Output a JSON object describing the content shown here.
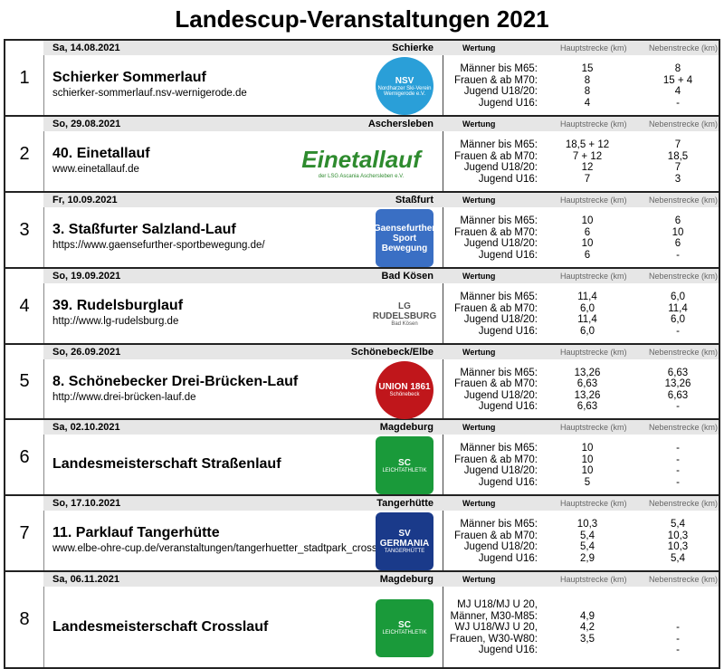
{
  "title": "Landescup-Veranstaltungen 2021",
  "headers": {
    "wertung": "Wertung",
    "haupt": "Hauptstrecke (km)",
    "neben": "Nebenstrecke (km)"
  },
  "events": [
    {
      "num": "1",
      "date": "Sa, 14.08.2021",
      "place": "Schierke",
      "name": "Schierker Sommerlauf",
      "url": "schierker-sommerlauf.nsv-wernigerode.de",
      "logo": {
        "text": "NSV",
        "caption": "Nordharzer Ski-Verein Wernigerode e.V.",
        "color": "#2a9fd8"
      },
      "rows": [
        [
          "Männer bis M65:",
          "15",
          "8"
        ],
        [
          "Frauen & ab M70:",
          "8",
          "15 + 4"
        ],
        [
          "Jugend U18/20:",
          "8",
          "4"
        ],
        [
          "Jugend U16:",
          "4",
          "-"
        ]
      ]
    },
    {
      "num": "2",
      "date": "So, 29.08.2021",
      "place": "Aschersleben",
      "name": "40. Einetallauf",
      "url": "www.einetallauf.de",
      "logo": {
        "text": "Einetallauf",
        "caption": "der LSG Ascania Aschersleben e.V.",
        "color": "#2e8b2e"
      },
      "rows": [
        [
          "Männer bis M65:",
          "18,5 + 12",
          "7"
        ],
        [
          "Frauen & ab M70:",
          "7 + 12",
          "18,5"
        ],
        [
          "Jugend U18/20:",
          "12",
          "7"
        ],
        [
          "Jugend U16:",
          "7",
          "3"
        ]
      ]
    },
    {
      "num": "3",
      "date": "Fr, 10.09.2021",
      "place": "Staßfurt",
      "name": "3. Staßfurter Salzland-Lauf",
      "url": "https://www.gaensefurther-sportbewegung.de/",
      "logo": {
        "text": "Gaensefurther Sport Bewegung",
        "caption": "",
        "color": "#3a6fc4"
      },
      "rows": [
        [
          "Männer bis M65:",
          "10",
          "6"
        ],
        [
          "Frauen & ab M70:",
          "6",
          "10"
        ],
        [
          "Jugend U18/20:",
          "10",
          "6"
        ],
        [
          "Jugend U16:",
          "6",
          "-"
        ]
      ]
    },
    {
      "num": "4",
      "date": "So, 19.09.2021",
      "place": "Bad Kösen",
      "name": "39. Rudelsburglauf",
      "url": "http://www.lg-rudelsburg.de",
      "logo": {
        "text": "LG RUDELSBURG",
        "caption": "Bad Kösen",
        "color": "#555555"
      },
      "rows": [
        [
          "Männer bis M65:",
          "11,4",
          "6,0"
        ],
        [
          "Frauen & ab M70:",
          "6,0",
          "11,4"
        ],
        [
          "Jugend U18/20:",
          "11,4",
          "6,0"
        ],
        [
          "Jugend U16:",
          "6,0",
          "-"
        ]
      ]
    },
    {
      "num": "5",
      "date": "So, 26.09.2021",
      "place": "Schönebeck/Elbe",
      "name": "8. Schönebecker Drei-Brücken-Lauf",
      "url": "http://www.drei-brücken-lauf.de",
      "logo": {
        "text": "UNION 1861",
        "caption": "Schönebeck",
        "color": "#c0161b"
      },
      "rows": [
        [
          "Männer bis M65:",
          "13,26",
          "6,63"
        ],
        [
          "Frauen & ab M70:",
          "6,63",
          "13,26"
        ],
        [
          "Jugend U18/20:",
          "13,26",
          "6,63"
        ],
        [
          "Jugend U16:",
          "6,63",
          "-"
        ]
      ]
    },
    {
      "num": "6",
      "date": "Sa, 02.10.2021",
      "place": "Magdeburg",
      "name": "Landesmeisterschaft Straßenlauf",
      "url": "",
      "logo": {
        "text": "SC",
        "caption": "LEICHTATHLETIK",
        "color": "#1a9a3a"
      },
      "rows": [
        [
          "Männer bis M65:",
          "10",
          "-"
        ],
        [
          "Frauen & ab M70:",
          "10",
          "-"
        ],
        [
          "Jugend U18/20:",
          "10",
          "-"
        ],
        [
          "Jugend U16:",
          "5",
          "-"
        ]
      ]
    },
    {
      "num": "7",
      "date": "So, 17.10.2021",
      "place": "Tangerhütte",
      "name": "11. Parklauf Tangerhütte",
      "url": "www.elbe-ohre-cup.de/veranstaltungen/tangerhuetter_stadtpark_cross",
      "logo": {
        "text": "SV GERMANIA",
        "caption": "TANGERHÜTTE",
        "color": "#1a3a8a"
      },
      "rows": [
        [
          "Männer bis M65:",
          "10,3",
          "5,4"
        ],
        [
          "Frauen & ab M70:",
          "5,4",
          "10,3"
        ],
        [
          "Jugend U18/20:",
          "5,4",
          "10,3"
        ],
        [
          "Jugend U16:",
          "2,9",
          "5,4"
        ]
      ]
    },
    {
      "num": "8",
      "date": "Sa, 06.11.2021",
      "place": "Magdeburg",
      "name": "Landesmeisterschaft Crosslauf",
      "url": "",
      "logo": {
        "text": "SC",
        "caption": "LEICHTATHLETIK",
        "color": "#1a9a3a"
      },
      "rows": [
        [
          "MJ U18/MJ U 20,",
          "",
          ""
        ],
        [
          "Männer, M30-M85:",
          "4,9",
          ""
        ],
        [
          "WJ U18/WJ U 20,",
          "4,2",
          "-"
        ],
        [
          "Frauen, W30-W80:",
          "3,5",
          "-"
        ],
        [
          "Jugend U16:",
          "",
          "-"
        ]
      ]
    }
  ]
}
